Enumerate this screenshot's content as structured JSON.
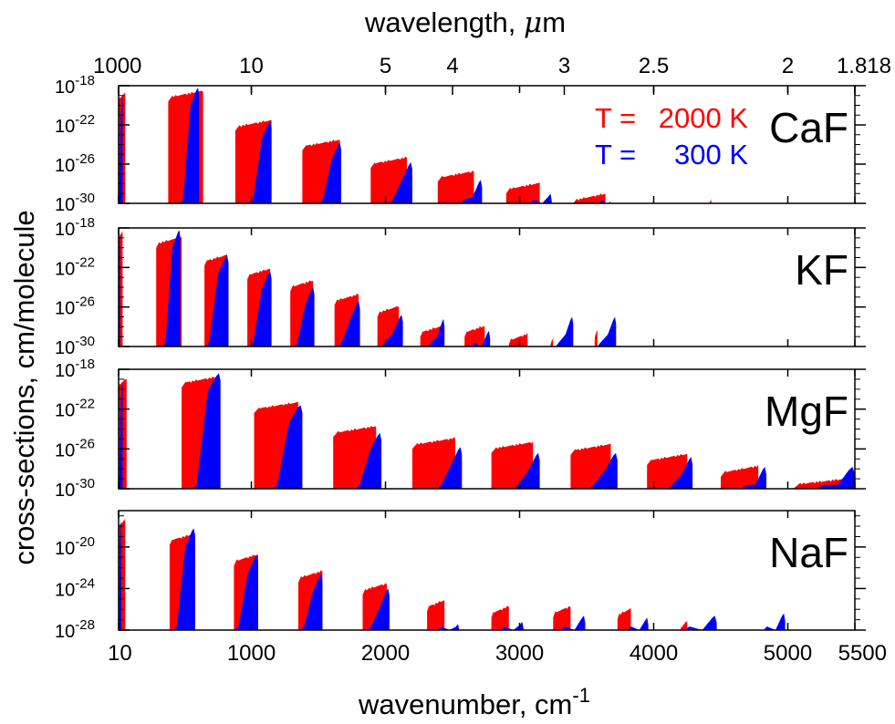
{
  "chart_data": {
    "type": "area",
    "y_title": "cross-sections, cm/molecule",
    "x_title": "wavenumber, cm",
    "x_title_sup": "-1",
    "top_title": "wavelength, ",
    "top_title_mu": "μ",
    "top_title_unit": "m",
    "x_range": [
      10,
      5500
    ],
    "x_ticks": [
      {
        "label": "10",
        "value": 10
      },
      {
        "label": "1000",
        "value": 1000
      },
      {
        "label": "2000",
        "value": 2000
      },
      {
        "label": "3000",
        "value": 3000
      },
      {
        "label": "4000",
        "value": 4000
      },
      {
        "label": "5000",
        "value": 5000
      },
      {
        "label": "5500",
        "value": 5500
      }
    ],
    "top_ticks": [
      {
        "label": "1000",
        "wavelength_um": 1000
      },
      {
        "label": "10",
        "wavelength_um": 10
      },
      {
        "label": "5",
        "wavelength_um": 5
      },
      {
        "label": "4",
        "wavelength_um": 4
      },
      {
        "label": "3",
        "wavelength_um": 3
      },
      {
        "label": "2.5",
        "wavelength_um": 2.5
      },
      {
        "label": "2",
        "wavelength_um": 2
      },
      {
        "label": "1.818",
        "wavelength_um": 1.818
      }
    ],
    "legend": [
      {
        "prefix": "T = ",
        "value": "2000 K",
        "color": "#ff0000"
      },
      {
        "prefix": "T = ",
        "value": "300 K",
        "color": "#0000ff"
      }
    ],
    "legend_placement": "top-right",
    "colors": {
      "hot": "#ff0000",
      "cold": "#0000ff"
    },
    "panels": [
      {
        "molecule": "CaF",
        "ylim_log10": [
          -30,
          -18
        ],
        "yticks": [
          {
            "base": "10",
            "exp": "-18",
            "value": -18
          },
          {
            "base": "10",
            "exp": "-22",
            "value": -22
          },
          {
            "base": "10",
            "exp": "-26",
            "value": -26
          },
          {
            "base": "10",
            "exp": "-30",
            "value": -30
          }
        ],
        "hot_bands": [
          {
            "start": 10,
            "end": 60,
            "peak_log": -18.6
          },
          {
            "start": 380,
            "end": 640,
            "peak_log": -18.4
          },
          {
            "start": 880,
            "end": 1150,
            "peak_log": -21.4
          },
          {
            "start": 1380,
            "end": 1660,
            "peak_log": -23.4
          },
          {
            "start": 1890,
            "end": 2160,
            "peak_log": -25.2
          },
          {
            "start": 2390,
            "end": 2660,
            "peak_log": -26.6
          },
          {
            "start": 2900,
            "end": 3150,
            "peak_log": -27.8
          },
          {
            "start": 3400,
            "end": 3640,
            "peak_log": -28.9
          },
          {
            "start": 4400,
            "end": 4430,
            "peak_log": -29.5
          }
        ],
        "cold_bands": [
          {
            "start": 10,
            "end": 40,
            "peak_log": -19.0
          },
          {
            "start": 470,
            "end": 610,
            "peak_log": -18.2
          },
          {
            "start": 990,
            "end": 1150,
            "peak_log": -21.6
          },
          {
            "start": 1510,
            "end": 1670,
            "peak_log": -23.8
          },
          {
            "start": 2030,
            "end": 2200,
            "peak_log": -25.8
          },
          {
            "start": 2560,
            "end": 2720,
            "peak_log": -27.6
          },
          {
            "start": 3080,
            "end": 3240,
            "peak_log": -29.0
          },
          {
            "start": 3600,
            "end": 3680,
            "peak_log": -29.8
          }
        ]
      },
      {
        "molecule": "KF",
        "ylim_log10": [
          -30,
          -18
        ],
        "yticks": [
          {
            "base": "10",
            "exp": "-18",
            "value": -18
          },
          {
            "base": "10",
            "exp": "-22",
            "value": -22
          },
          {
            "base": "10",
            "exp": "-26",
            "value": -26
          },
          {
            "base": "10",
            "exp": "-30",
            "value": -30
          }
        ],
        "hot_bands": [
          {
            "start": 10,
            "end": 40,
            "peak_log": -18.2
          },
          {
            "start": 290,
            "end": 480,
            "peak_log": -18.8
          },
          {
            "start": 650,
            "end": 820,
            "peak_log": -20.6
          },
          {
            "start": 970,
            "end": 1140,
            "peak_log": -22.0
          },
          {
            "start": 1290,
            "end": 1460,
            "peak_log": -23.2
          },
          {
            "start": 1620,
            "end": 1800,
            "peak_log": -24.6
          },
          {
            "start": 1940,
            "end": 2100,
            "peak_log": -25.8
          },
          {
            "start": 2260,
            "end": 2420,
            "peak_log": -27.8
          },
          {
            "start": 2590,
            "end": 2740,
            "peak_log": -27.8
          },
          {
            "start": 2920,
            "end": 3060,
            "peak_log": -28.6
          },
          {
            "start": 3230,
            "end": 3250,
            "peak_log": -29.0
          },
          {
            "start": 3560,
            "end": 3580,
            "peak_log": -28.2
          }
        ],
        "cold_bands": [
          {
            "start": 10,
            "end": 20,
            "peak_log": -18.6
          },
          {
            "start": 340,
            "end": 470,
            "peak_log": -18.2
          },
          {
            "start": 660,
            "end": 830,
            "peak_log": -20.8
          },
          {
            "start": 990,
            "end": 1150,
            "peak_log": -22.4
          },
          {
            "start": 1320,
            "end": 1470,
            "peak_log": -24.0
          },
          {
            "start": 1650,
            "end": 1810,
            "peak_log": -25.4
          },
          {
            "start": 1970,
            "end": 2130,
            "peak_log": -26.8
          },
          {
            "start": 2320,
            "end": 2440,
            "peak_log": -27.2
          },
          {
            "start": 2640,
            "end": 2780,
            "peak_log": -28.4
          },
          {
            "start": 3270,
            "end": 3400,
            "peak_log": -27.0
          },
          {
            "start": 3580,
            "end": 3720,
            "peak_log": -27.0
          }
        ]
      },
      {
        "molecule": "MgF",
        "ylim_log10": [
          -30,
          -18
        ],
        "yticks": [
          {
            "base": "10",
            "exp": "-18",
            "value": -18
          },
          {
            "base": "10",
            "exp": "-22",
            "value": -22
          },
          {
            "base": "10",
            "exp": "-26",
            "value": -26
          },
          {
            "base": "10",
            "exp": "-30",
            "value": -30
          }
        ],
        "hot_bands": [
          {
            "start": 10,
            "end": 70,
            "peak_log": -18.8
          },
          {
            "start": 480,
            "end": 760,
            "peak_log": -18.6
          },
          {
            "start": 1020,
            "end": 1350,
            "peak_log": -21.2
          },
          {
            "start": 1610,
            "end": 1930,
            "peak_log": -23.6
          },
          {
            "start": 2200,
            "end": 2520,
            "peak_log": -24.8
          },
          {
            "start": 2790,
            "end": 3100,
            "peak_log": -25.2
          },
          {
            "start": 3380,
            "end": 3680,
            "peak_log": -25.4
          },
          {
            "start": 3950,
            "end": 4250,
            "peak_log": -26.4
          },
          {
            "start": 4500,
            "end": 4780,
            "peak_log": -27.6
          },
          {
            "start": 5040,
            "end": 5490,
            "peak_log": -28.8
          }
        ],
        "cold_bands": [
          {
            "start": 10,
            "end": 40,
            "peak_log": -19.2
          },
          {
            "start": 560,
            "end": 770,
            "peak_log": -18.4
          },
          {
            "start": 1160,
            "end": 1380,
            "peak_log": -21.6
          },
          {
            "start": 1780,
            "end": 1970,
            "peak_log": -24.4
          },
          {
            "start": 2390,
            "end": 2570,
            "peak_log": -25.8
          },
          {
            "start": 2960,
            "end": 3150,
            "peak_log": -26.4
          },
          {
            "start": 3520,
            "end": 3730,
            "peak_log": -26.4
          },
          {
            "start": 4110,
            "end": 4290,
            "peak_log": -26.8
          },
          {
            "start": 4660,
            "end": 4840,
            "peak_log": -27.8
          },
          {
            "start": 5220,
            "end": 5500,
            "peak_log": -27.8
          }
        ]
      },
      {
        "molecule": "NaF",
        "ylim_log10": [
          -28,
          -16.5
        ],
        "yticks": [
          {
            "base": "10",
            "exp": "-20",
            "value": -20
          },
          {
            "base": "10",
            "exp": "-24",
            "value": -24
          },
          {
            "base": "10",
            "exp": "-28",
            "value": -28
          }
        ],
        "hot_bands": [
          {
            "start": 10,
            "end": 60,
            "peak_log": -17.2
          },
          {
            "start": 390,
            "end": 580,
            "peak_log": -18.6
          },
          {
            "start": 870,
            "end": 1050,
            "peak_log": -20.6
          },
          {
            "start": 1350,
            "end": 1530,
            "peak_log": -22.2
          },
          {
            "start": 1830,
            "end": 2010,
            "peak_log": -23.4
          },
          {
            "start": 2310,
            "end": 2440,
            "peak_log": -25.0
          },
          {
            "start": 2790,
            "end": 2920,
            "peak_log": -25.6
          },
          {
            "start": 3250,
            "end": 3380,
            "peak_log": -25.6
          },
          {
            "start": 3730,
            "end": 3830,
            "peak_log": -25.8
          },
          {
            "start": 4200,
            "end": 4250,
            "peak_log": -27.0
          }
        ],
        "cold_bands": [
          {
            "start": 10,
            "end": 30,
            "peak_log": -17.4
          },
          {
            "start": 420,
            "end": 580,
            "peak_log": -18.2
          },
          {
            "start": 880,
            "end": 1050,
            "peak_log": -20.8
          },
          {
            "start": 1370,
            "end": 1530,
            "peak_log": -22.6
          },
          {
            "start": 1870,
            "end": 2030,
            "peak_log": -24.0
          },
          {
            "start": 2390,
            "end": 2550,
            "peak_log": -27.4
          },
          {
            "start": 2860,
            "end": 3030,
            "peak_log": -27.2
          },
          {
            "start": 3310,
            "end": 3490,
            "peak_log": -26.6
          },
          {
            "start": 3810,
            "end": 3960,
            "peak_log": -26.8
          },
          {
            "start": 4230,
            "end": 4470,
            "peak_log": -26.6
          },
          {
            "start": 4820,
            "end": 4980,
            "peak_log": -26.4
          }
        ]
      }
    ]
  }
}
